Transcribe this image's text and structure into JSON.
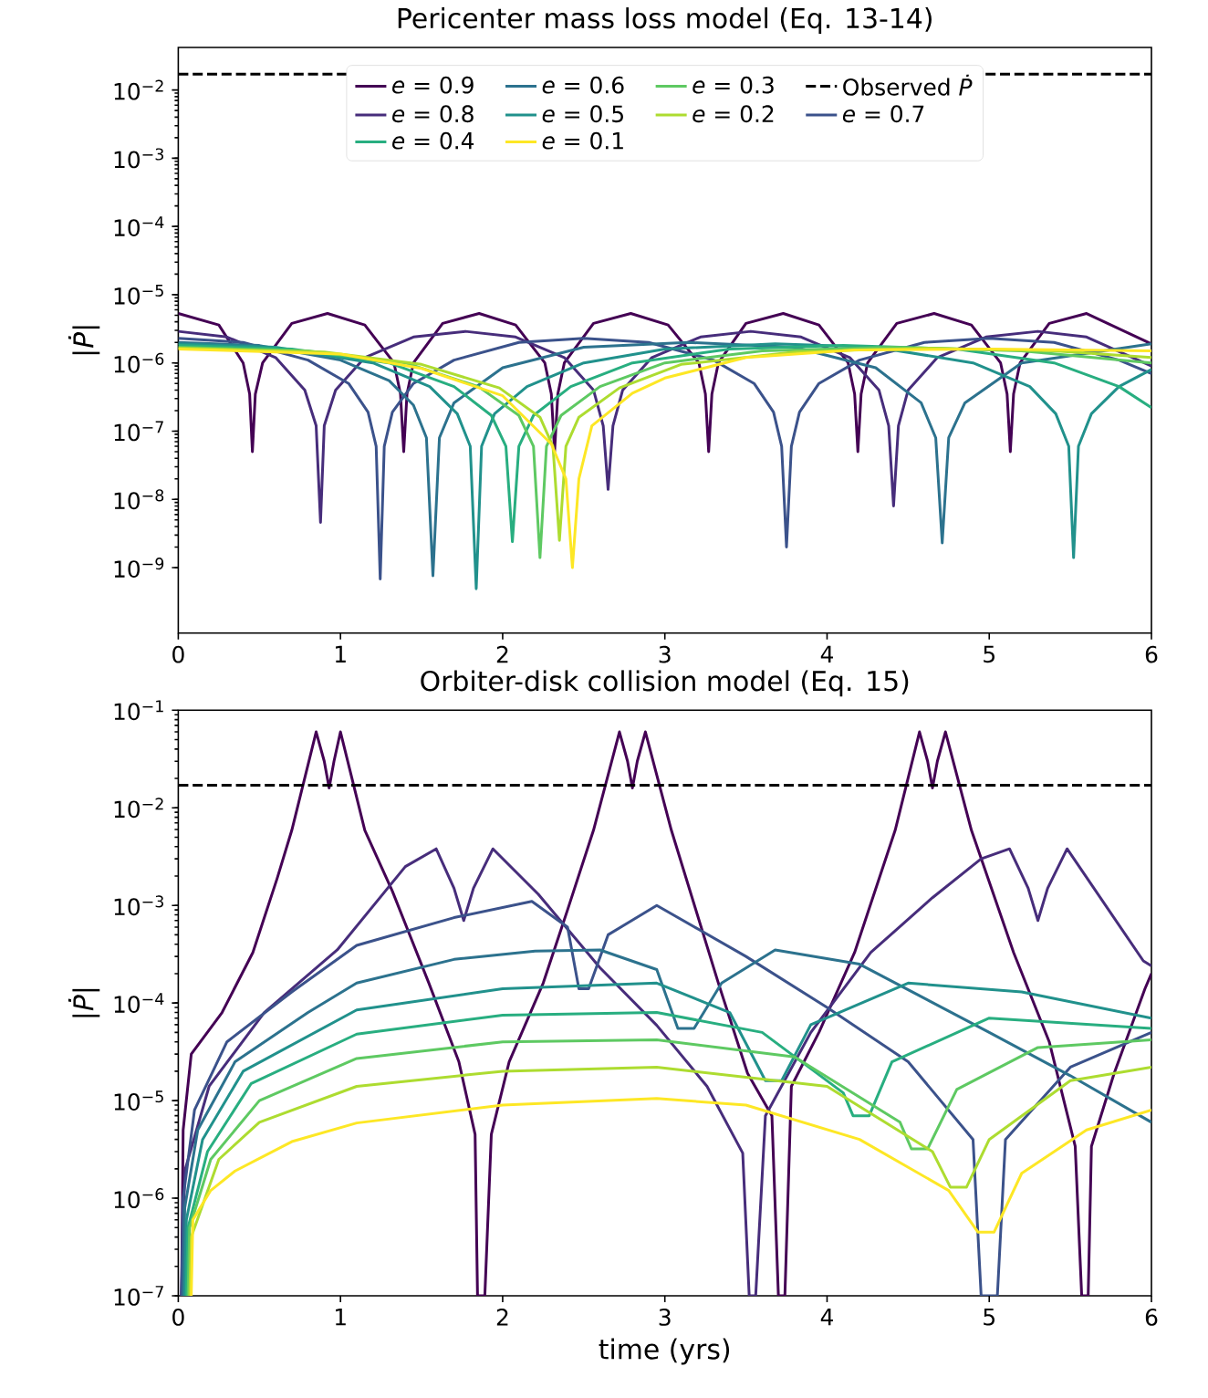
{
  "chart_data": [
    {
      "type": "line",
      "title": "Pericenter mass loss model (Eq. 13-14)",
      "ylabel": "|*Ṗ*|",
      "log": "y",
      "legend": "top",
      "xlim": [
        0,
        6
      ],
      "ylim": [
        1.1e-10,
        0.042
      ],
      "xticks": [
        0,
        1,
        2,
        3,
        4,
        5,
        6
      ],
      "yticks": [
        {
          "value": 1e-09,
          "label": "10$^{−9}$"
        },
        {
          "value": 1e-08,
          "label": "10$^{−8}$"
        },
        {
          "value": 1e-07,
          "label": "10$^{−7}$"
        },
        {
          "value": 1e-06,
          "label": "10$^{−6}$"
        },
        {
          "value": 1e-05,
          "label": "10$^{−5}$"
        },
        {
          "value": 0.0001,
          "label": "10$^{−4}$"
        },
        {
          "value": 0.001,
          "label": "10$^{−3}$"
        },
        {
          "value": 0.01,
          "label": "10$^{−2}$"
        }
      ],
      "ref_lines": [
        {
          "axis": "y",
          "value": 0.017,
          "label": "Observed *Ṗ*",
          "color": "#000000",
          "line_style": "dashed"
        }
      ],
      "series": [
        {
          "name": "*e* = 0.9",
          "color": "#440154",
          "x": [
            0,
            0.25,
            0.4,
            0.44,
            0.457,
            0.475,
            0.52,
            0.7,
            0.92,
            1.15,
            1.33,
            1.37,
            1.39,
            1.41,
            1.45,
            1.63,
            1.855,
            2.08,
            2.26,
            2.3,
            2.32,
            2.34,
            2.38,
            2.56,
            2.79,
            3.02,
            3.21,
            3.25,
            3.27,
            3.29,
            3.33,
            3.5,
            3.73,
            3.95,
            4.13,
            4.17,
            4.19,
            4.21,
            4.25,
            4.43,
            4.66,
            4.89,
            5.07,
            5.11,
            5.13,
            5.15,
            5.19,
            5.37,
            5.6,
            6
          ],
          "values": [
            5.3e-06,
            3.6e-06,
            1e-06,
            3.5e-07,
            5e-08,
            3.5e-07,
            1e-06,
            3.8e-06,
            5.3e-06,
            3.6e-06,
            1e-06,
            3.5e-07,
            5e-08,
            3.5e-07,
            1e-06,
            3.8e-06,
            5.3e-06,
            3.6e-06,
            1e-06,
            3.5e-07,
            5e-08,
            3.5e-07,
            1e-06,
            3.8e-06,
            5.3e-06,
            3.6e-06,
            1e-06,
            3.5e-07,
            5e-08,
            3.5e-07,
            1e-06,
            3.8e-06,
            5.3e-06,
            3.6e-06,
            1e-06,
            3.5e-07,
            5e-08,
            3.5e-07,
            1e-06,
            3.8e-06,
            5.3e-06,
            3.6e-06,
            1e-06,
            3.5e-07,
            5e-08,
            3.5e-07,
            1e-06,
            3.8e-06,
            5.3e-06,
            1.9e-06
          ]
        },
        {
          "name": "*e* = 0.8",
          "color": "#472d7b",
          "x": [
            0,
            0.3,
            0.6,
            0.78,
            0.85,
            0.877,
            0.9,
            0.97,
            1.15,
            1.45,
            1.77,
            2.08,
            2.38,
            2.56,
            2.62,
            2.65,
            2.68,
            2.74,
            2.92,
            3.22,
            3.53,
            3.84,
            4.14,
            4.32,
            4.38,
            4.41,
            4.44,
            4.5,
            4.68,
            4.98,
            5.3,
            5.6,
            6
          ],
          "values": [
            2.9e-06,
            2.4e-06,
            1.2e-06,
            4e-07,
            1.2e-07,
            4.6e-09,
            1.2e-07,
            4e-07,
            1.2e-06,
            2.4e-06,
            2.9e-06,
            2.4e-06,
            1.2e-06,
            4e-07,
            1.2e-07,
            1.4e-08,
            1.2e-07,
            4e-07,
            1.2e-06,
            2.4e-06,
            2.9e-06,
            2.4e-06,
            1.2e-06,
            4e-07,
            1.2e-07,
            8e-09,
            1.2e-07,
            4e-07,
            1.2e-06,
            2.4e-06,
            2.9e-06,
            2.4e-06,
            9e-07
          ]
        },
        {
          "name": "*e* = 0.7",
          "color": "#3b528b",
          "x": [
            0,
            0.4,
            0.8,
            1.05,
            1.17,
            1.22,
            1.245,
            1.27,
            1.32,
            1.45,
            1.7,
            2.1,
            2.5,
            2.9,
            3.3,
            3.55,
            3.67,
            3.72,
            3.75,
            3.78,
            3.83,
            3.95,
            4.2,
            4.6,
            5.0,
            5.4,
            5.8,
            6
          ],
          "values": [
            2.3e-06,
            2e-06,
            1.1e-06,
            5e-07,
            1.9e-07,
            6e-08,
            6.8e-10,
            6e-08,
            1.9e-07,
            5e-07,
            1.1e-06,
            2e-06,
            2.3e-06,
            2e-06,
            1.1e-06,
            5e-07,
            1.9e-07,
            6e-08,
            2e-09,
            6e-08,
            1.9e-07,
            5e-07,
            1.1e-06,
            2e-06,
            2.3e-06,
            2e-06,
            1.1e-06,
            7e-07
          ]
        },
        {
          "name": "*e* = 0.6",
          "color": "#2c728e",
          "x": [
            0,
            0.5,
            1.0,
            1.3,
            1.45,
            1.53,
            1.57,
            1.61,
            1.7,
            2.0,
            2.5,
            3.14,
            3.8,
            4.3,
            4.58,
            4.67,
            4.71,
            4.75,
            4.85,
            5.2,
            6
          ],
          "values": [
            2e-06,
            1.8e-06,
            1.1e-06,
            5.5e-07,
            2.4e-07,
            8e-08,
            7.6e-10,
            8e-08,
            2.6e-07,
            8.5e-07,
            1.7e-06,
            2e-06,
            1.7e-06,
            8.5e-07,
            2.6e-07,
            8e-08,
            2.3e-09,
            8e-08,
            2.6e-07,
            1e-06,
            1.9e-06
          ]
        },
        {
          "name": "*e* = 0.5",
          "color": "#21918c",
          "x": [
            0,
            0.6,
            1.2,
            1.55,
            1.72,
            1.8,
            1.837,
            1.87,
            1.95,
            2.15,
            2.5,
            3.0,
            3.68,
            4.3,
            4.9,
            5.25,
            5.41,
            5.49,
            5.52,
            5.55,
            5.63,
            5.8,
            6
          ],
          "values": [
            1.9e-06,
            1.7e-06,
            1e-06,
            4.5e-07,
            1.8e-07,
            6e-08,
            4.9e-10,
            6e-08,
            1.8e-07,
            4.5e-07,
            1e-06,
            1.6e-06,
            1.9e-06,
            1.7e-06,
            1e-06,
            4.5e-07,
            1.8e-07,
            6e-08,
            1.4e-09,
            6e-08,
            1.8e-07,
            4.5e-07,
            8e-07
          ]
        },
        {
          "name": "*e* = 0.4",
          "color": "#28ae80",
          "x": [
            0,
            0.7,
            1.3,
            1.7,
            1.93,
            2.02,
            2.06,
            2.1,
            2.19,
            2.42,
            2.8,
            3.4,
            4.1,
            4.8,
            5.4,
            5.8,
            6
          ],
          "values": [
            1.8e-06,
            1.6e-06,
            1e-06,
            4.5e-07,
            1.7e-07,
            6e-08,
            2.4e-09,
            6e-08,
            1.7e-07,
            4.5e-07,
            1e-06,
            1.6e-06,
            1.8e-06,
            1.6e-06,
            1e-06,
            4.5e-07,
            2.2e-07
          ]
        },
        {
          "name": "*e* = 0.3",
          "color": "#5ec962",
          "x": [
            0,
            0.8,
            1.4,
            1.85,
            2.1,
            2.19,
            2.23,
            2.27,
            2.36,
            2.6,
            3.0,
            3.6,
            4.4,
            5.2,
            6
          ],
          "values": [
            1.7e-06,
            1.5e-06,
            1e-06,
            4.5e-07,
            1.7e-07,
            6e-08,
            1.4e-09,
            6e-08,
            1.7e-07,
            4.5e-07,
            1e-06,
            1.5e-06,
            1.7e-06,
            1.5e-06,
            1e-06
          ]
        },
        {
          "name": "*e* = 0.2",
          "color": "#addc30",
          "x": [
            0,
            0.9,
            1.5,
            1.98,
            2.23,
            2.31,
            2.35,
            2.39,
            2.47,
            2.72,
            3.1,
            3.8,
            4.6,
            5.4,
            6
          ],
          "values": [
            1.65e-06,
            1.45e-06,
            9.5e-07,
            4.3e-07,
            1.6e-07,
            6e-08,
            2.5e-09,
            6e-08,
            1.6e-07,
            4.3e-07,
            9.5e-07,
            1.45e-06,
            1.65e-06,
            1.5e-06,
            1.2e-06
          ]
        },
        {
          "name": "*e* = 0.1",
          "color": "#fde725",
          "x": [
            0,
            1.0,
            1.5,
            2.0,
            2.3,
            2.39,
            2.43,
            2.47,
            2.55,
            2.8,
            3.0,
            3.5,
            4.17,
            5.0,
            6
          ],
          "values": [
            1.6e-06,
            1.35e-06,
            8.3e-07,
            3.3e-07,
            6.5e-08,
            2e-08,
            1e-09,
            2e-08,
            1.2e-07,
            3.6e-07,
            6e-07,
            1.2e-06,
            1.55e-06,
            1.6e-06,
            1.5e-06
          ]
        }
      ]
    },
    {
      "type": "line",
      "title": "Orbiter-disk collision model (Eq. 15)",
      "xlabel": "time (yrs)",
      "ylabel": "|*Ṗ*|",
      "log": "y",
      "xlim": [
        0,
        6
      ],
      "ylim": [
        1e-07,
        0.1
      ],
      "xticks": [
        0,
        1,
        2,
        3,
        4,
        5,
        6
      ],
      "yticks": [
        {
          "value": 1e-07,
          "label": "10$^{−7}$"
        },
        {
          "value": 1e-06,
          "label": "10$^{−6}$"
        },
        {
          "value": 1e-05,
          "label": "10$^{−5}$"
        },
        {
          "value": 0.0001,
          "label": "10$^{−4}$"
        },
        {
          "value": 0.001,
          "label": "10$^{−3}$"
        },
        {
          "value": 0.01,
          "label": "10$^{−2}$"
        },
        {
          "value": 0.1,
          "label": "10$^{−1}$"
        }
      ],
      "ref_lines": [
        {
          "axis": "y",
          "value": 0.017,
          "color": "#000000",
          "line_style": "dashed"
        }
      ],
      "series": [
        {
          "color": "#440154",
          "x": [
            0.02,
            0.03,
            0.08,
            0.27,
            0.46,
            0.61,
            0.7,
            0.85,
            0.9,
            0.93,
            0.96,
            1.0,
            1.15,
            1.32,
            1.545,
            1.73,
            1.83,
            1.845,
            1.89,
            1.93,
            2.04,
            2.25,
            2.4,
            2.56,
            2.72,
            2.77,
            2.8,
            2.83,
            2.88,
            3.04,
            3.33,
            3.51,
            3.66,
            3.7,
            3.74,
            3.78,
            3.95,
            4.17,
            4.42,
            4.57,
            4.62,
            4.65,
            4.68,
            4.73,
            4.89,
            5.15,
            5.37,
            5.53,
            5.57,
            5.61,
            5.63,
            5.77,
            5.96,
            6
          ],
          "values": [
            1e-07,
            5e-06,
            3e-05,
            8e-05,
            0.00033,
            0.0019,
            0.0059,
            0.06,
            0.03,
            0.016,
            0.03,
            0.06,
            0.0059,
            0.0014,
            0.00016,
            2.5e-05,
            4.5e-06,
            1e-07,
            1e-07,
            4.5e-06,
            2.5e-05,
            0.00016,
            0.0009,
            0.0059,
            0.06,
            0.03,
            0.016,
            0.03,
            0.06,
            0.0059,
            0.00016,
            1.9e-05,
            7e-06,
            1e-07,
            1e-07,
            1.4e-05,
            5e-05,
            0.00033,
            0.0059,
            0.06,
            0.03,
            0.016,
            0.03,
            0.06,
            0.0059,
            0.00033,
            4e-05,
            3.4e-06,
            1e-07,
            1e-07,
            3.4e-06,
            1.9e-05,
            0.00014,
            0.0002
          ]
        },
        {
          "color": "#472d7b",
          "x": [
            0.02,
            0.04,
            0.19,
            0.53,
            0.98,
            1.4,
            1.59,
            1.7,
            1.76,
            1.82,
            1.94,
            2.22,
            2.6,
            2.95,
            3.26,
            3.48,
            3.52,
            3.56,
            3.62,
            3.9,
            4.27,
            4.65,
            4.95,
            5.125,
            5.24,
            5.3,
            5.36,
            5.48,
            5.95,
            6
          ],
          "values": [
            1e-07,
            1.9e-06,
            1.4e-05,
            8e-05,
            0.00035,
            0.0025,
            0.0038,
            0.0015,
            0.0007,
            0.0015,
            0.0038,
            0.0013,
            0.00023,
            5.9e-05,
            1.4e-05,
            2.9e-06,
            1e-07,
            1e-07,
            7e-06,
            5e-05,
            0.00033,
            0.0012,
            0.003,
            0.0038,
            0.0015,
            0.0007,
            0.0015,
            0.0038,
            0.00027,
            0.00024
          ]
        },
        {
          "color": "#3b528b",
          "x": [
            0.02,
            0.03,
            0.1,
            0.3,
            0.7,
            1.1,
            1.7,
            2.18,
            2.4,
            2.47,
            2.53,
            2.65,
            2.95,
            3.5,
            4.0,
            4.5,
            4.9,
            4.95,
            5.05,
            5.1,
            5.5,
            6
          ],
          "values": [
            1e-07,
            1e-06,
            8e-06,
            4e-05,
            0.00013,
            0.00039,
            0.00075,
            0.0011,
            0.0006,
            0.00014,
            0.00014,
            0.0005,
            0.001,
            0.0003,
            9e-05,
            2.5e-05,
            4e-06,
            1e-07,
            1e-07,
            4e-06,
            2.2e-05,
            5e-05
          ]
        },
        {
          "color": "#2c728e",
          "x": [
            0.03,
            0.04,
            0.12,
            0.35,
            0.8,
            1.1,
            1.7,
            2.2,
            2.6,
            2.95,
            3.08,
            3.18,
            3.35,
            3.68,
            4.2,
            5.0,
            5.5,
            6
          ],
          "values": [
            1e-07,
            8e-07,
            5e-06,
            2.5e-05,
            8e-05,
            0.00016,
            0.00028,
            0.00034,
            0.00035,
            0.00022,
            5.5e-05,
            5.5e-05,
            0.00016,
            0.00035,
            0.00025,
            5e-05,
            1.8e-05,
            6e-06
          ]
        },
        {
          "color": "#21918c",
          "x": [
            0.04,
            0.05,
            0.15,
            0.4,
            1.1,
            2.0,
            2.95,
            3.4,
            3.62,
            3.72,
            3.9,
            4.5,
            5.2,
            6
          ],
          "values": [
            1e-07,
            6e-07,
            4e-06,
            2e-05,
            8.5e-05,
            0.00014,
            0.00016,
            8e-05,
            1.6e-05,
            1.6e-05,
            6e-05,
            0.00016,
            0.00013,
            7e-05
          ]
        },
        {
          "color": "#28ae80",
          "x": [
            0.05,
            0.06,
            0.18,
            0.45,
            1.1,
            2.0,
            2.95,
            3.6,
            4.1,
            4.16,
            4.26,
            4.4,
            5.0,
            6
          ],
          "values": [
            1e-07,
            5e-07,
            3e-06,
            1.5e-05,
            4.8e-05,
            7.5e-05,
            8e-05,
            5e-05,
            1.2e-05,
            7e-06,
            7e-06,
            2.5e-05,
            7e-05,
            5.5e-05
          ]
        },
        {
          "color": "#5ec962",
          "x": [
            0.06,
            0.07,
            0.2,
            0.5,
            1.1,
            2.0,
            2.95,
            3.8,
            4.45,
            4.52,
            4.62,
            4.8,
            5.3,
            6
          ],
          "values": [
            1e-07,
            5e-07,
            2.5e-06,
            1e-05,
            2.7e-05,
            4e-05,
            4.2e-05,
            2.8e-05,
            6e-06,
            3.2e-06,
            3.2e-06,
            1.3e-05,
            3.5e-05,
            4.2e-05
          ]
        },
        {
          "color": "#addc30",
          "x": [
            0.07,
            0.08,
            0.25,
            0.5,
            1.1,
            2.0,
            2.95,
            4.0,
            4.65,
            4.76,
            4.86,
            5.0,
            5.5,
            6
          ],
          "values": [
            1e-07,
            4e-07,
            2.5e-06,
            6e-06,
            1.4e-05,
            2e-05,
            2.2e-05,
            1.4e-05,
            3e-06,
            1.3e-06,
            1.3e-06,
            4e-06,
            1.6e-05,
            2.2e-05
          ]
        },
        {
          "color": "#fde725",
          "x": [
            0.08,
            0.09,
            0.2,
            0.35,
            0.7,
            1.1,
            2.0,
            2.95,
            3.5,
            4.2,
            4.75,
            4.93,
            5.03,
            5.2,
            5.6,
            6
          ],
          "values": [
            1e-07,
            6e-07,
            1.2e-06,
            1.9e-06,
            3.8e-06,
            5.9e-06,
            9e-06,
            1.05e-05,
            9e-06,
            4e-06,
            1.2e-06,
            4.5e-07,
            4.5e-07,
            1.8e-06,
            5e-06,
            8e-06
          ]
        }
      ]
    }
  ]
}
